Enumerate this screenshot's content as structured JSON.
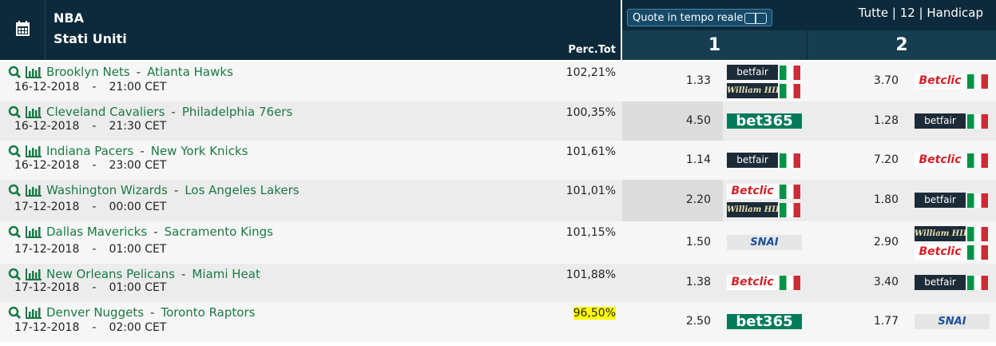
{
  "header": {
    "league": "NBA",
    "country": "Stati Uniti",
    "perc_label": "Perc.Tot",
    "live_button": "Quote in tempo reale",
    "filters": "Tutte | 12 | Handicap",
    "col1": "1",
    "col2": "2"
  },
  "separator": "-",
  "rows": [
    {
      "home": "Brooklyn Nets",
      "away": "Atlanta Hawks",
      "date": "16-12-2018",
      "time": "21:00 CET",
      "perc": "102,21%",
      "odds1": "1.33",
      "books1": [
        "betfair",
        "William HILL"
      ],
      "odds2": "3.70",
      "books2": [
        "Betclic"
      ]
    },
    {
      "home": "Cleveland Cavaliers",
      "away": "Philadelphia 76ers",
      "date": "16-12-2018",
      "time": "21:30 CET",
      "perc": "100,35%",
      "odds1": "4.50",
      "books1": [
        "bet365"
      ],
      "odds2": "1.28",
      "books2": [
        "betfair"
      ]
    },
    {
      "home": "Indiana Pacers",
      "away": "New York Knicks",
      "date": "16-12-2018",
      "time": "23:00 CET",
      "perc": "101,61%",
      "odds1": "1.14",
      "books1": [
        "betfair"
      ],
      "odds2": "7.20",
      "books2": [
        "Betclic"
      ]
    },
    {
      "home": "Washington Wizards",
      "away": "Los Angeles Lakers",
      "date": "17-12-2018",
      "time": "00:00 CET",
      "perc": "101,01%",
      "odds1": "2.20",
      "books1": [
        "Betclic",
        "William HILL"
      ],
      "odds2": "1.80",
      "books2": [
        "betfair"
      ]
    },
    {
      "home": "Dallas Mavericks",
      "away": "Sacramento Kings",
      "date": "17-12-2018",
      "time": "01:00 CET",
      "perc": "101,15%",
      "odds1": "1.50",
      "books1": [
        "SNAI"
      ],
      "odds2": "2.90",
      "books2": [
        "William HILL",
        "Betclic"
      ]
    },
    {
      "home": "New Orleans Pelicans",
      "away": "Miami Heat",
      "date": "17-12-2018",
      "time": "01:00 CET",
      "perc": "101,88%",
      "odds1": "1.38",
      "books1": [
        "Betclic"
      ],
      "odds2": "3.40",
      "books2": [
        "betfair"
      ]
    },
    {
      "home": "Denver Nuggets",
      "away": "Toronto Raptors",
      "date": "17-12-2018",
      "time": "02:00 CET",
      "perc": "96,50%",
      "odds1": "2.50",
      "books1": [
        "bet365"
      ],
      "odds2": "1.77",
      "books2": [
        "SNAI"
      ]
    }
  ]
}
